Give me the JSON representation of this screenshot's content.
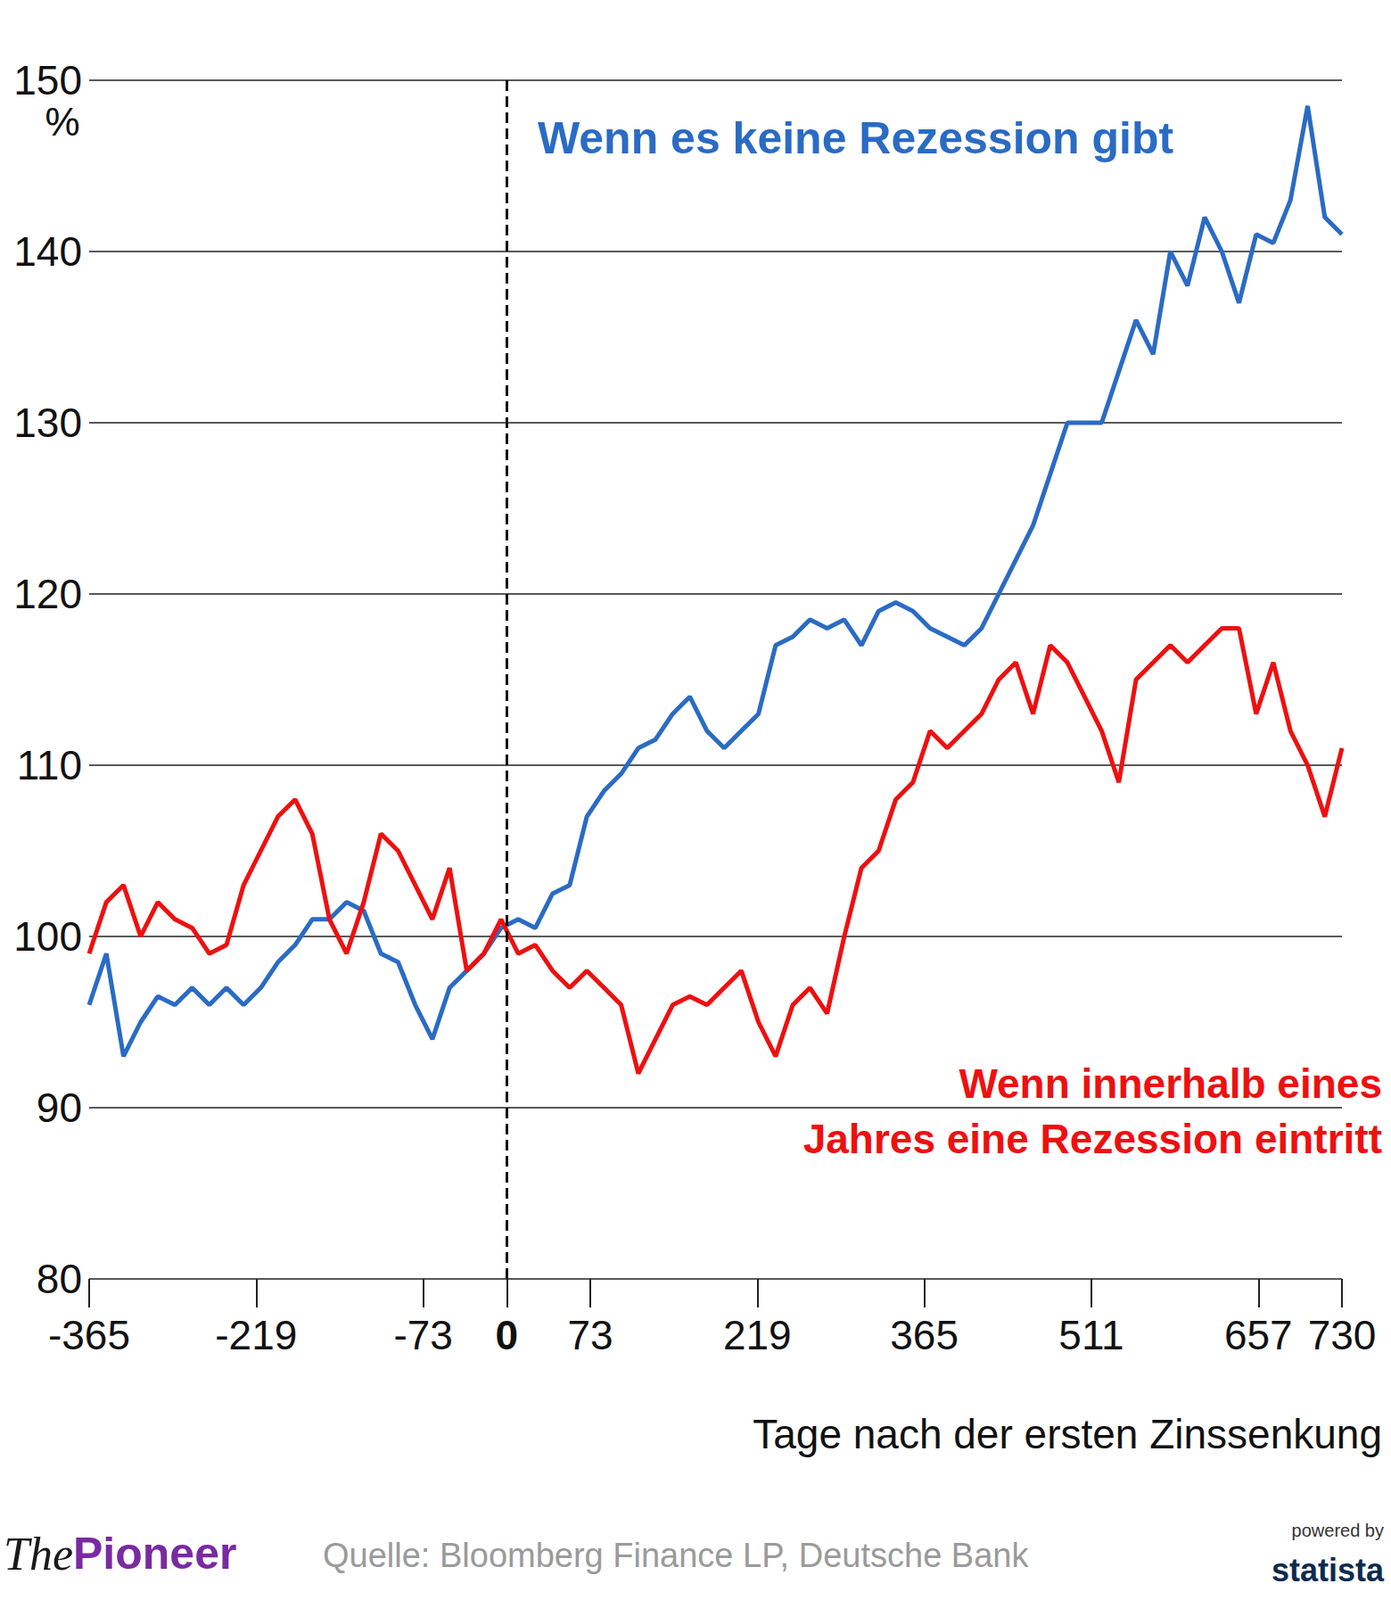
{
  "chart_data": {
    "type": "line",
    "x": [
      -365,
      -350,
      -335,
      -320,
      -305,
      -290,
      -275,
      -260,
      -245,
      -230,
      -215,
      -200,
      -185,
      -170,
      -155,
      -140,
      -125,
      -110,
      -95,
      -80,
      -65,
      -50,
      -35,
      -20,
      -5,
      10,
      25,
      40,
      55,
      70,
      85,
      100,
      115,
      130,
      145,
      160,
      175,
      190,
      205,
      220,
      235,
      250,
      265,
      280,
      295,
      310,
      325,
      340,
      355,
      370,
      385,
      400,
      415,
      430,
      445,
      460,
      475,
      490,
      505,
      520,
      535,
      550,
      565,
      580,
      595,
      610,
      625,
      640,
      655,
      670,
      685,
      700,
      715,
      730
    ],
    "series": [
      {
        "name": "Wenn es keine Rezession gibt",
        "color": "#2a6bc4",
        "values": [
          96,
          99,
          93,
          95,
          96.5,
          96,
          97,
          96,
          97,
          96,
          97,
          98.5,
          99.5,
          101,
          101,
          102,
          101.5,
          99,
          98.5,
          96,
          94,
          97,
          98,
          99,
          100.5,
          101,
          100.5,
          102.5,
          103,
          107,
          108.5,
          109.5,
          111,
          111.5,
          113,
          114,
          112,
          111,
          112,
          113,
          117,
          117.5,
          118.5,
          118,
          118.5,
          117,
          119,
          119.5,
          119,
          118,
          117.5,
          117,
          118,
          120,
          122,
          124,
          127,
          130,
          130,
          130,
          133,
          136,
          134,
          140,
          138,
          142,
          140,
          137,
          141,
          140.5,
          143,
          148.5,
          142,
          141
        ]
      },
      {
        "name": "Wenn innerhalb eines Jahres eine Rezession eintritt",
        "color": "#ee1010",
        "values": [
          99,
          102,
          103,
          100,
          102,
          101,
          100.5,
          99,
          99.5,
          103,
          105,
          107,
          108,
          106,
          101,
          99,
          102,
          106,
          105,
          103,
          101,
          104,
          98,
          99,
          101,
          99,
          99.5,
          98,
          97,
          98,
          97,
          96,
          92,
          94,
          96,
          96.5,
          96,
          97,
          98,
          95,
          93,
          96,
          97,
          95.5,
          100,
          104,
          105,
          108,
          109,
          112,
          111,
          112,
          113,
          115,
          116,
          113,
          117,
          116,
          114,
          112,
          109,
          115,
          116,
          117,
          116,
          117,
          118,
          118,
          113,
          116,
          112,
          110,
          107,
          111
        ]
      }
    ],
    "xlim": [
      -365,
      730
    ],
    "xticks": [
      -365,
      -219,
      -73,
      0,
      73,
      219,
      365,
      511,
      657,
      730
    ],
    "ylim": [
      80,
      150
    ],
    "yticks": [
      80,
      90,
      100,
      110,
      120,
      130,
      140,
      150
    ],
    "xlabel": "Tage nach der ersten Zinssenkung",
    "ylabel": "%",
    "grid": true
  },
  "footer": {
    "brand": [
      "The",
      "Pioneer"
    ],
    "source": "Quelle: Bloomberg Finance LP, Deutsche Bank",
    "powered_by": "powered by",
    "logo": "statista"
  }
}
